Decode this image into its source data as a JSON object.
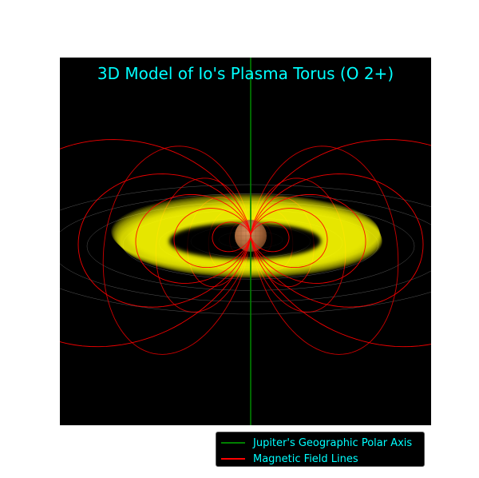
{
  "chart_data": {
    "type": "3d-surface",
    "title": "3D Model of Io's Plasma Torus (O 2+)",
    "legend": {
      "placement": "lower-right",
      "entries": [
        {
          "label": "Jupiter's Geographic Polar Axis",
          "color": "#008000"
        },
        {
          "label": "Magnetic Field Lines",
          "color": "#ff0000"
        }
      ]
    },
    "series": [
      {
        "name": "Jupiter's Geographic Polar Axis",
        "kind": "line",
        "color": "#008000"
      },
      {
        "name": "Magnetic Field Lines",
        "kind": "dipole-field-lines",
        "color": "#ff0000",
        "shell_L": [
          2,
          4,
          6,
          9,
          14
        ]
      }
    ],
    "features": {
      "planet_color": "#b06a3a",
      "torus_color": "#ffff00",
      "background": "#000000",
      "grid": true,
      "axes_visible": false
    }
  }
}
